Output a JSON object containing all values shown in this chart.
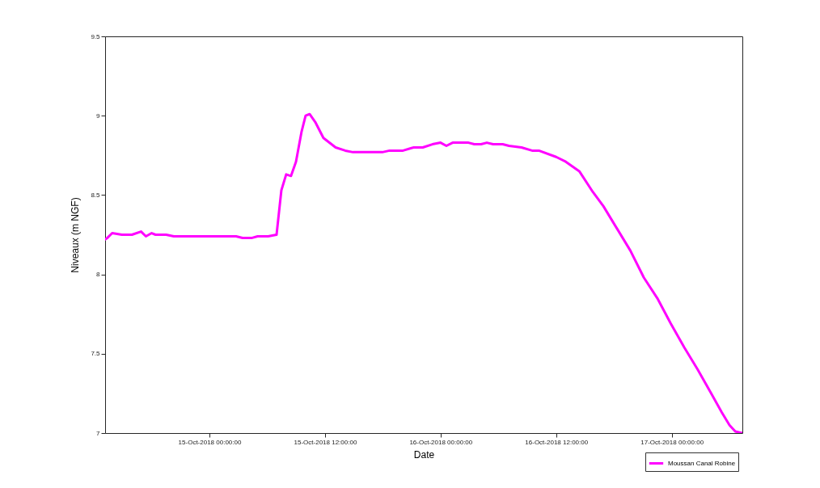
{
  "chart_data": {
    "type": "line",
    "xlabel": "Date",
    "ylabel": "Niveaux (m NGF)",
    "xlim": [
      "2018-10-14T13:10",
      "2018-10-17T07:20"
    ],
    "xticks": [
      {
        "value": "2018-10-15T00:00",
        "label": "15-Oct-2018 00:00:00"
      },
      {
        "value": "2018-10-15T12:00",
        "label": "15-Oct-2018 12:00:00"
      },
      {
        "value": "2018-10-16T00:00",
        "label": "16-Oct-2018 00:00:00"
      },
      {
        "value": "2018-10-16T12:00",
        "label": "16-Oct-2018 12:00:00"
      },
      {
        "value": "2018-10-17T00:00",
        "label": "17-Oct-2018 00:00:00"
      }
    ],
    "ylim": [
      7,
      9.5
    ],
    "yticks": [
      7,
      7.5,
      8,
      8.5,
      9,
      9.5
    ],
    "grid": false,
    "legend": "bottom right",
    "marker": "none",
    "line_style": "solid",
    "series": [
      {
        "name": "Moussan Canal Robine",
        "color": "#ff00ff",
        "x": [
          "2018-10-14T13:10",
          "2018-10-14T13:24",
          "2018-10-14T13:54",
          "2018-10-14T14:54",
          "2018-10-14T15:57",
          "2018-10-14T16:54",
          "2018-10-14T17:24",
          "2018-10-14T18:00",
          "2018-10-14T18:24",
          "2018-10-14T19:03",
          "2018-10-14T19:30",
          "2018-10-14T20:18",
          "2018-10-15T02:46",
          "2018-10-15T03:26",
          "2018-10-15T04:26",
          "2018-10-15T05:00",
          "2018-10-15T06:06",
          "2018-10-15T06:58",
          "2018-10-15T07:28",
          "2018-10-15T07:58",
          "2018-10-15T08:28",
          "2018-10-15T08:59",
          "2018-10-15T09:34",
          "2018-10-15T09:59",
          "2018-10-15T10:24",
          "2018-10-15T10:59",
          "2018-10-15T11:50",
          "2018-10-15T13:06",
          "2018-10-15T14:06",
          "2018-10-15T14:54",
          "2018-10-15T17:57",
          "2018-10-15T18:42",
          "2018-10-15T20:06",
          "2018-10-15T21:12",
          "2018-10-15T22:09",
          "2018-10-15T23:09",
          "2018-10-16T00:00",
          "2018-10-16T00:36",
          "2018-10-16T01:15",
          "2018-10-16T02:54",
          "2018-10-16T03:30",
          "2018-10-16T04:12",
          "2018-10-16T04:48",
          "2018-10-16T05:27",
          "2018-10-16T06:27",
          "2018-10-16T07:06",
          "2018-10-16T08:24",
          "2018-10-16T09:30",
          "2018-10-16T10:12",
          "2018-10-16T12:00",
          "2018-10-16T13:00",
          "2018-10-16T14:24",
          "2018-10-16T15:48",
          "2018-10-16T16:54",
          "2018-10-16T18:18",
          "2018-10-16T19:42",
          "2018-10-16T21:06",
          "2018-10-16T22:30",
          "2018-10-16T23:54",
          "2018-10-17T01:18",
          "2018-10-17T02:42",
          "2018-10-17T04:06",
          "2018-10-17T05:12",
          "2018-10-17T06:00",
          "2018-10-17T06:36",
          "2018-10-17T07:18"
        ],
        "values": [
          8.22,
          8.23,
          8.26,
          8.25,
          8.25,
          8.27,
          8.24,
          8.26,
          8.25,
          8.25,
          8.25,
          8.24,
          8.24,
          8.23,
          8.23,
          8.24,
          8.24,
          8.25,
          8.53,
          8.63,
          8.62,
          8.71,
          8.9,
          9.0,
          9.01,
          8.96,
          8.86,
          8.8,
          8.78,
          8.77,
          8.77,
          8.78,
          8.78,
          8.8,
          8.8,
          8.82,
          8.83,
          8.81,
          8.83,
          8.83,
          8.82,
          8.82,
          8.83,
          8.82,
          8.82,
          8.81,
          8.8,
          8.78,
          8.78,
          8.74,
          8.71,
          8.65,
          8.52,
          8.43,
          8.29,
          8.15,
          7.98,
          7.85,
          7.69,
          7.54,
          7.4,
          7.25,
          7.13,
          7.05,
          7.01,
          7.0
        ]
      }
    ]
  }
}
